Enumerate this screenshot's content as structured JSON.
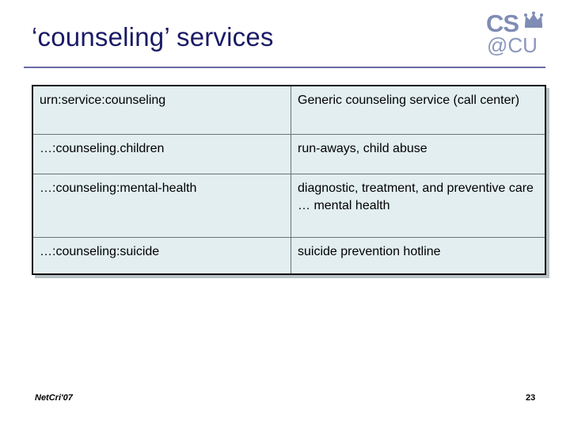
{
  "slide": {
    "title": "‘counseling’ services",
    "logo_top": "CS",
    "logo_bottom": "@CU",
    "footer": "NetCri'07",
    "page_number": "23"
  },
  "table": {
    "rows": [
      {
        "urn": "urn:service:counseling",
        "description": "Generic counseling service (call center)"
      },
      {
        "urn": "…:counseling.children",
        "description": "run-aways, child abuse"
      },
      {
        "urn": "…:counseling:mental-health",
        "description": "diagnostic, treatment, and preventive care … mental health"
      },
      {
        "urn": "…:counseling:suicide",
        "description": "suicide prevention hotline"
      }
    ]
  },
  "colors": {
    "title": "#1a1a66",
    "table_background": "#e2eef0",
    "logo": "#7f8cb5"
  }
}
